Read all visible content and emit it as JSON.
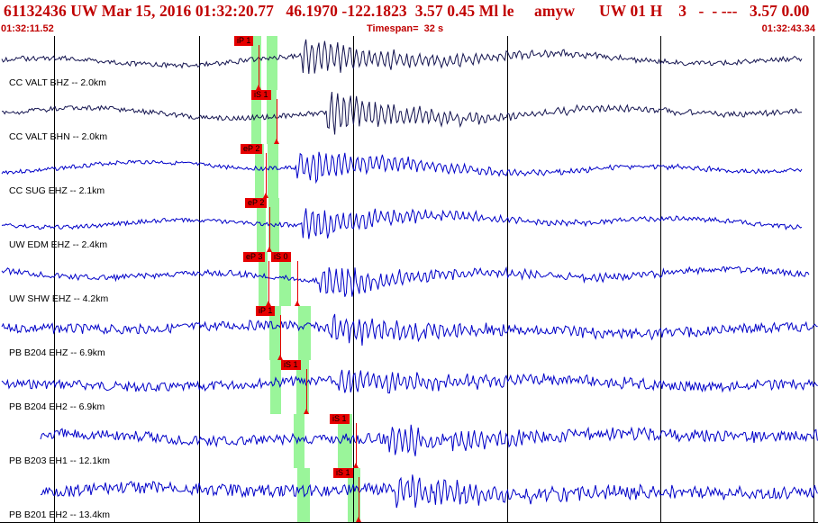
{
  "header": {
    "title": "61132436 UW Mar 15, 2016 01:32:20.77   46.1970 -122.1823  3.57 0.45 Ml le     amyw      UW 01 H    3   -  - ---   3.57 0.00",
    "start_time": "01:32:11.52",
    "timespan": "Timespan=  32 s",
    "end_time": "01:32:43.34"
  },
  "colors": {
    "title": "#c00000",
    "wave_dark": "#141450",
    "wave_blue": "#0000c8",
    "band": "#9af59a",
    "pick": "#e60000"
  },
  "channels": [
    {
      "label": "CC VALT BHZ -- 2.0km",
      "wave_color": "#141450",
      "onset_s": 11.8,
      "amp": 0.9,
      "noise": 0.05,
      "seed": 1,
      "end_s": 31.4,
      "picks": [
        {
          "label": "iP 1"
        }
      ]
    },
    {
      "label": "CC VALT BHN -- 2.0km",
      "wave_color": "#141450",
      "onset_s": 12.8,
      "amp": 0.9,
      "noise": 0.05,
      "seed": 2,
      "end_s": 31.4,
      "picks": [
        {
          "label": "iS 1"
        }
      ]
    },
    {
      "label": "CC SUG EHZ -- 2.1km",
      "wave_color": "#0000c8",
      "onset_s": 11.6,
      "amp": 0.75,
      "noise": 0.02,
      "seed": 3,
      "end_s": 31.4,
      "picks": [
        {
          "label": "eP 2"
        }
      ]
    },
    {
      "label": "UW EDM EHZ -- 2.4km",
      "wave_color": "#0000c8",
      "onset_s": 11.8,
      "amp": 0.7,
      "noise": 0.03,
      "seed": 4,
      "end_s": 31.4,
      "picks": [
        {
          "label": "eP 2"
        }
      ]
    },
    {
      "label": "UW SHW EHZ -- 4.2km",
      "wave_color": "#0000c8",
      "onset_s": 12.5,
      "amp": 0.7,
      "noise": 0.1,
      "seed": 5,
      "end_s": 31.7,
      "picks": [
        {
          "label": "eP 3"
        },
        {
          "label": "iS 0"
        }
      ]
    },
    {
      "label": "PB B204 EHZ -- 6.9km",
      "wave_color": "#0000c8",
      "onset_s": 12.9,
      "amp": 0.55,
      "noise": 0.22,
      "seed": 6,
      "end_s": 32.0,
      "picks": [
        {
          "label": "iP 1"
        }
      ]
    },
    {
      "label": "PB B204 EH2 -- 6.9km",
      "wave_color": "#0000c8",
      "onset_s": 13.2,
      "amp": 0.55,
      "noise": 0.22,
      "seed": 7,
      "end_s": 32.0,
      "picks": [
        {
          "label": "iS 1"
        }
      ]
    },
    {
      "label": "PB B203 EH1 -- 12.1km",
      "wave_color": "#0000c8",
      "onset_s": 15.2,
      "amp": 0.5,
      "noise": 0.28,
      "seed": 8,
      "end_s": 32.0,
      "picks": [
        {
          "label": "iS 1"
        }
      ]
    },
    {
      "label": "PB B201 EH2 -- 13.4km",
      "wave_color": "#0000c8",
      "onset_s": 15.5,
      "amp": 0.55,
      "noise": 0.32,
      "seed": 9,
      "end_s": 32.0,
      "picks": [
        {
          "label": "iS 1"
        }
      ]
    }
  ]
}
